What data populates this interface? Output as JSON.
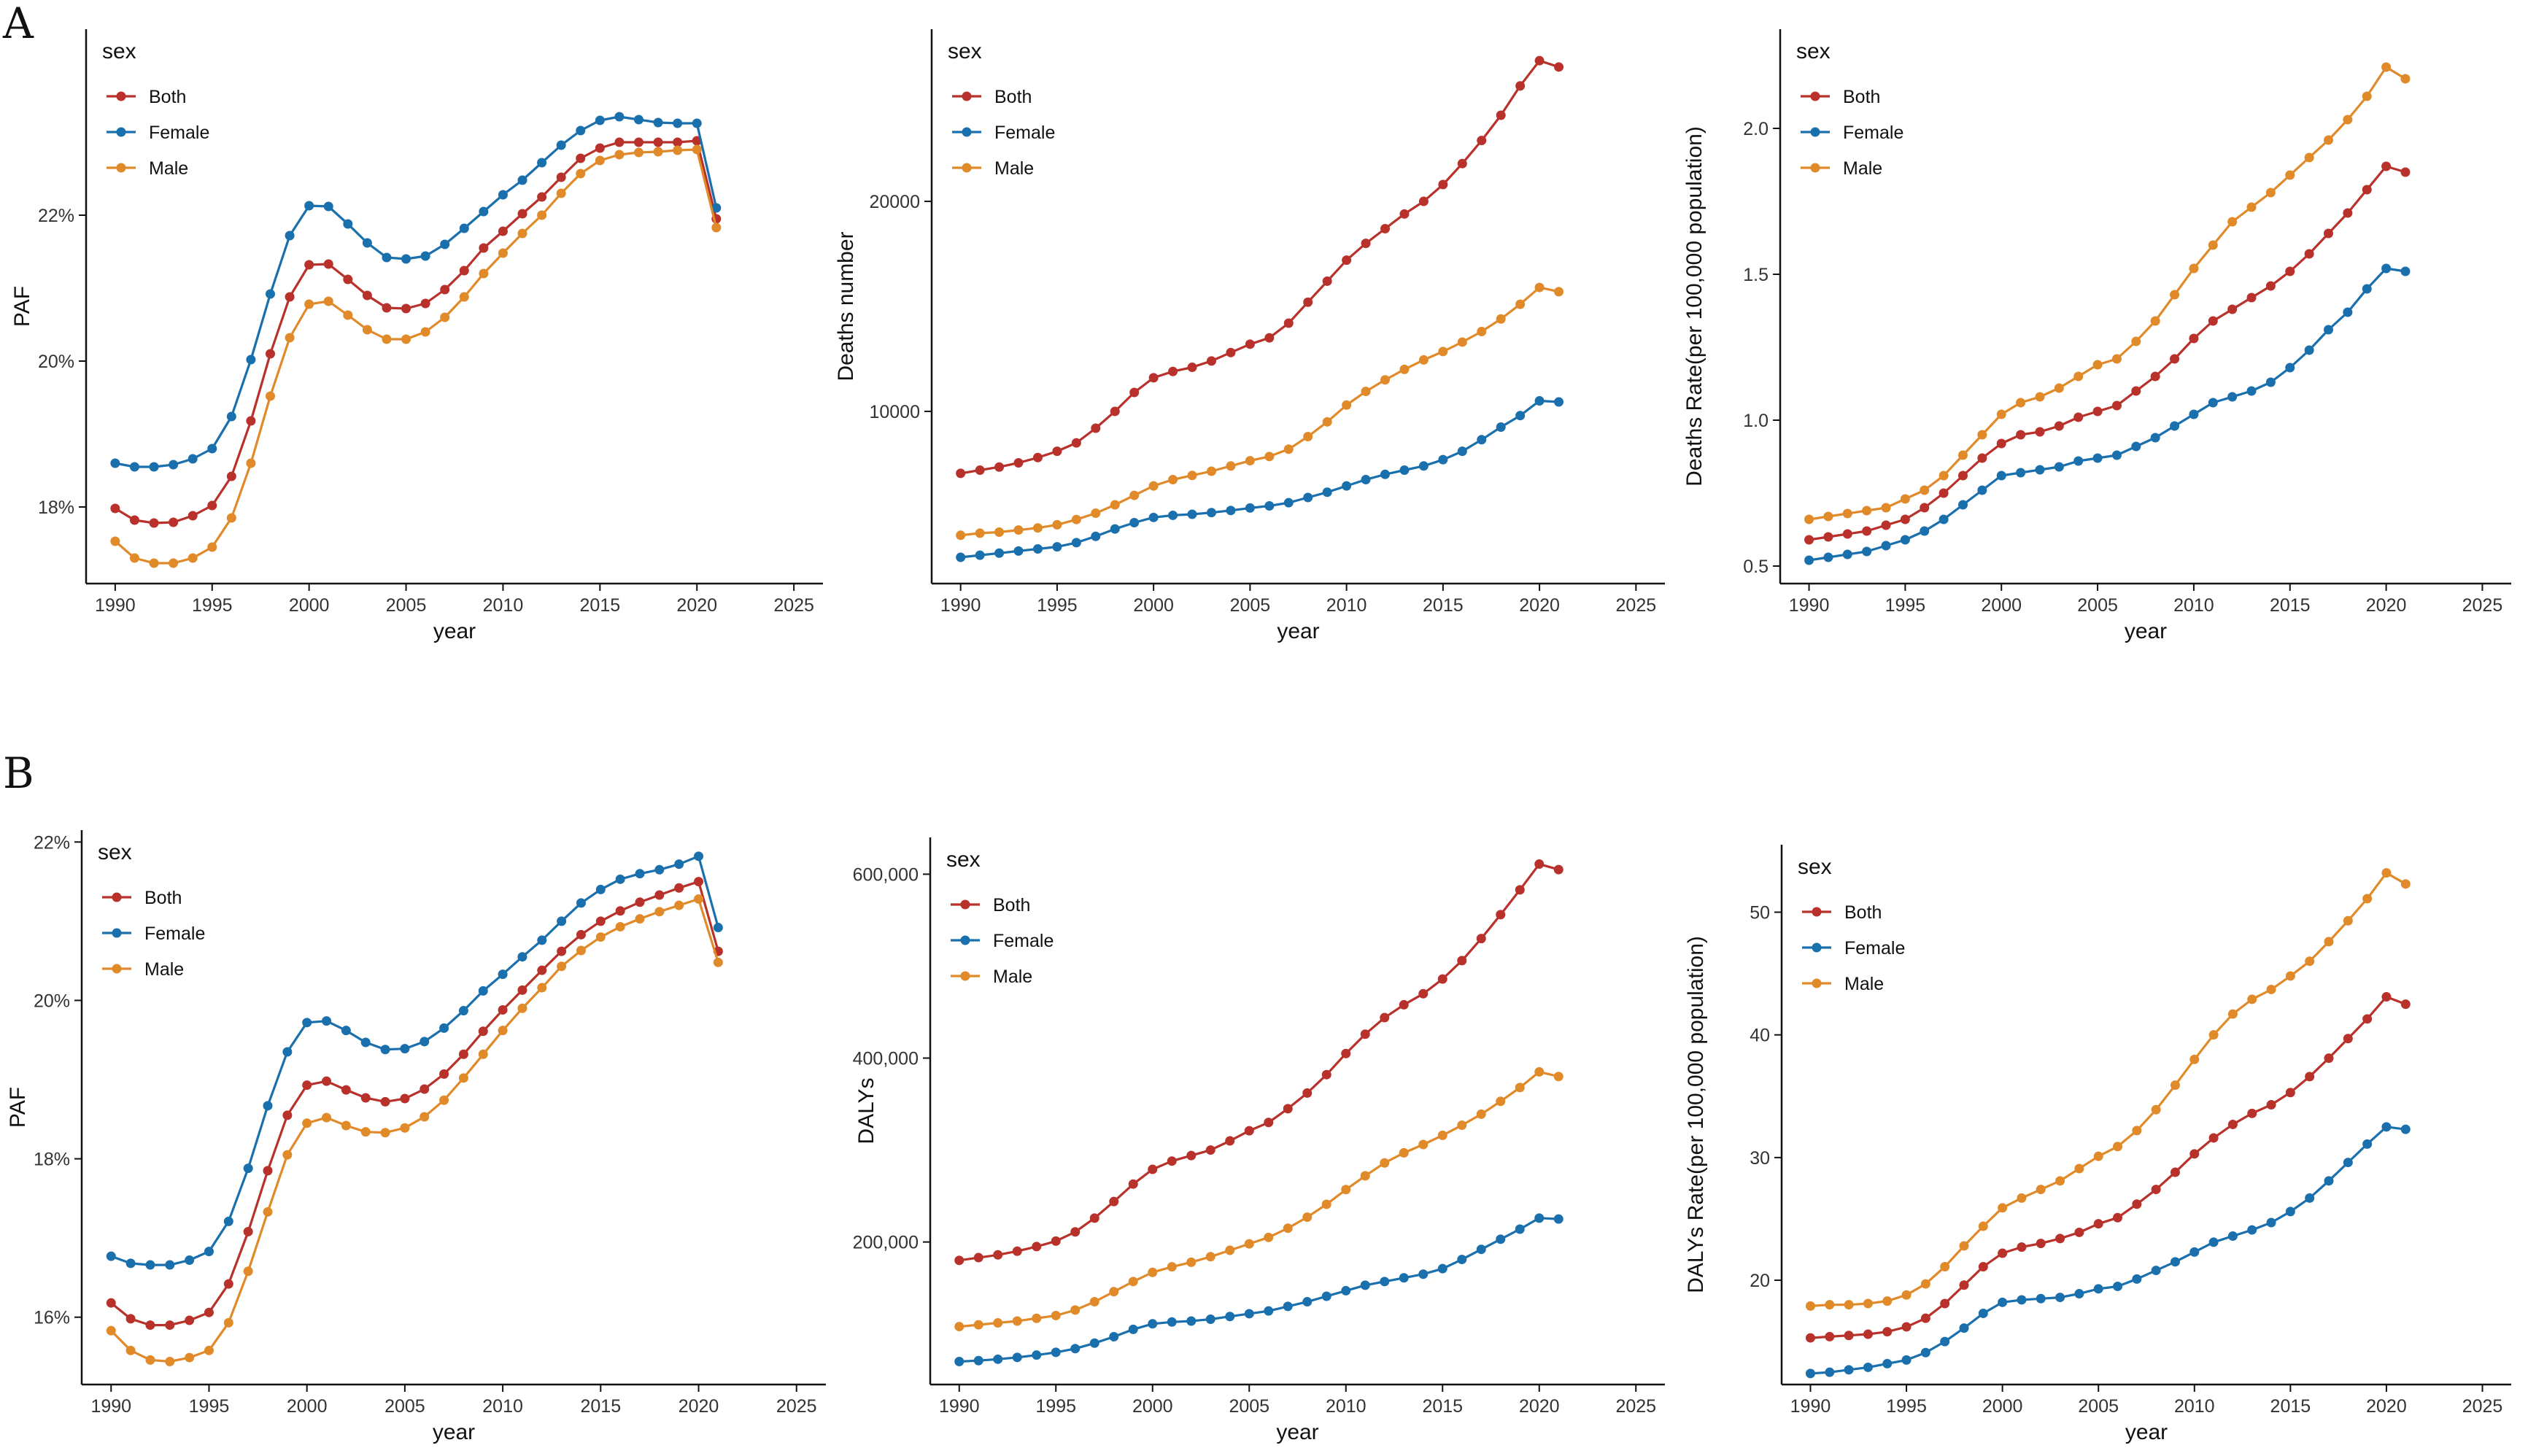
{
  "panel_labels": [
    "A",
    "B"
  ],
  "colors": {
    "Both": "#b8312a",
    "Female": "#1a6fad",
    "Male": "#e08a2a"
  },
  "chart_data": [
    {
      "type": "line",
      "panel": "A",
      "title": "",
      "xlabel": "year",
      "ylabel": "PAF",
      "xlim": [
        1988.5,
        2026.5
      ],
      "ylim": [
        16.95,
        24.55
      ],
      "xticks": [
        1990,
        1995,
        2000,
        2005,
        2010,
        2015,
        2020,
        2025
      ],
      "xtick_labels": [
        "1990",
        "1995",
        "2000",
        "2005",
        "2010",
        "2015",
        "2020",
        "2025"
      ],
      "yticks": [
        18,
        20,
        22
      ],
      "ytick_labels": [
        "18%",
        "20%",
        "22%"
      ],
      "legend_title": "sex",
      "x": [
        1990,
        1991,
        1992,
        1993,
        1994,
        1995,
        1996,
        1997,
        1998,
        1999,
        2000,
        2001,
        2002,
        2003,
        2004,
        2005,
        2006,
        2007,
        2008,
        2009,
        2010,
        2011,
        2012,
        2013,
        2014,
        2015,
        2016,
        2017,
        2018,
        2019,
        2020,
        2021
      ],
      "series": [
        {
          "name": "Both",
          "values": [
            17.98,
            17.82,
            17.78,
            17.79,
            17.88,
            18.02,
            18.42,
            19.18,
            20.1,
            20.88,
            21.32,
            21.33,
            21.12,
            20.9,
            20.73,
            20.72,
            20.79,
            20.98,
            21.24,
            21.55,
            21.78,
            22.02,
            22.25,
            22.52,
            22.78,
            22.92,
            23.0,
            23.0,
            23.0,
            23.0,
            23.02,
            21.95
          ]
        },
        {
          "name": "Female",
          "values": [
            18.6,
            18.55,
            18.55,
            18.58,
            18.66,
            18.8,
            19.24,
            20.02,
            20.92,
            21.72,
            22.13,
            22.12,
            21.88,
            21.62,
            21.42,
            21.4,
            21.44,
            21.6,
            21.82,
            22.05,
            22.28,
            22.48,
            22.72,
            22.96,
            23.16,
            23.3,
            23.35,
            23.31,
            23.27,
            23.26,
            23.26,
            22.1
          ]
        },
        {
          "name": "Male",
          "values": [
            17.53,
            17.3,
            17.23,
            17.23,
            17.3,
            17.45,
            17.85,
            18.6,
            19.52,
            20.32,
            20.78,
            20.82,
            20.63,
            20.43,
            20.3,
            20.3,
            20.4,
            20.6,
            20.88,
            21.2,
            21.48,
            21.75,
            22.0,
            22.3,
            22.57,
            22.75,
            22.83,
            22.86,
            22.87,
            22.89,
            22.9,
            21.83
          ]
        }
      ]
    },
    {
      "type": "line",
      "panel": "A",
      "title": "",
      "xlabel": "year",
      "ylabel": "Deaths number",
      "xlim": [
        1988.5,
        2026.5
      ],
      "ylim": [
        1800,
        28200
      ],
      "xticks": [
        1990,
        1995,
        2000,
        2005,
        2010,
        2015,
        2020,
        2025
      ],
      "xtick_labels": [
        "1990",
        "1995",
        "2000",
        "2005",
        "2010",
        "2015",
        "2020",
        "2025"
      ],
      "yticks": [
        10000,
        20000
      ],
      "ytick_labels": [
        "10000",
        "20000"
      ],
      "legend_title": "sex",
      "x": [
        1990,
        1991,
        1992,
        1993,
        1994,
        1995,
        1996,
        1997,
        1998,
        1999,
        2000,
        2001,
        2002,
        2003,
        2004,
        2005,
        2006,
        2007,
        2008,
        2009,
        2010,
        2011,
        2012,
        2013,
        2014,
        2015,
        2016,
        2017,
        2018,
        2019,
        2020,
        2021
      ],
      "series": [
        {
          "name": "Both",
          "values": [
            7050,
            7200,
            7350,
            7550,
            7800,
            8100,
            8500,
            9200,
            10000,
            10900,
            11600,
            11900,
            12100,
            12400,
            12800,
            13200,
            13500,
            14200,
            15200,
            16200,
            17200,
            18000,
            18700,
            19400,
            20000,
            20800,
            21800,
            22900,
            24100,
            25500,
            26700,
            26400
          ]
        },
        {
          "name": "Female",
          "values": [
            3050,
            3150,
            3250,
            3350,
            3450,
            3550,
            3750,
            4050,
            4400,
            4700,
            4950,
            5050,
            5100,
            5180,
            5280,
            5400,
            5500,
            5650,
            5900,
            6150,
            6450,
            6750,
            7000,
            7200,
            7400,
            7700,
            8100,
            8650,
            9250,
            9800,
            10500,
            10450
          ]
        },
        {
          "name": "Male",
          "values": [
            4100,
            4200,
            4250,
            4350,
            4450,
            4600,
            4850,
            5150,
            5550,
            6000,
            6450,
            6750,
            6950,
            7150,
            7400,
            7650,
            7850,
            8200,
            8800,
            9500,
            10300,
            10950,
            11500,
            12000,
            12450,
            12850,
            13300,
            13800,
            14400,
            15100,
            15900,
            15700
          ]
        }
      ]
    },
    {
      "type": "line",
      "panel": "A",
      "title": "",
      "xlabel": "year",
      "ylabel": "Deaths Rate(per 100,000 population)",
      "xlim": [
        1988.5,
        2026.5
      ],
      "ylim": [
        0.44,
        2.34
      ],
      "xticks": [
        1990,
        1995,
        2000,
        2005,
        2010,
        2015,
        2020,
        2025
      ],
      "xtick_labels": [
        "1990",
        "1995",
        "2000",
        "2005",
        "2010",
        "2015",
        "2020",
        "2025"
      ],
      "yticks": [
        0.5,
        1.0,
        1.5,
        2.0
      ],
      "ytick_labels": [
        "0.5",
        "1.0",
        "1.5",
        "2.0"
      ],
      "legend_title": "sex",
      "x": [
        1990,
        1991,
        1992,
        1993,
        1994,
        1995,
        1996,
        1997,
        1998,
        1999,
        2000,
        2001,
        2002,
        2003,
        2004,
        2005,
        2006,
        2007,
        2008,
        2009,
        2010,
        2011,
        2012,
        2013,
        2014,
        2015,
        2016,
        2017,
        2018,
        2019,
        2020,
        2021
      ],
      "series": [
        {
          "name": "Both",
          "values": [
            0.59,
            0.6,
            0.61,
            0.62,
            0.64,
            0.66,
            0.7,
            0.75,
            0.81,
            0.87,
            0.92,
            0.95,
            0.96,
            0.98,
            1.01,
            1.03,
            1.05,
            1.1,
            1.15,
            1.21,
            1.28,
            1.34,
            1.38,
            1.42,
            1.46,
            1.51,
            1.57,
            1.64,
            1.71,
            1.79,
            1.87,
            1.85
          ]
        },
        {
          "name": "Female",
          "values": [
            0.52,
            0.53,
            0.54,
            0.55,
            0.57,
            0.59,
            0.62,
            0.66,
            0.71,
            0.76,
            0.81,
            0.82,
            0.83,
            0.84,
            0.86,
            0.87,
            0.88,
            0.91,
            0.94,
            0.98,
            1.02,
            1.06,
            1.08,
            1.1,
            1.13,
            1.18,
            1.24,
            1.31,
            1.37,
            1.45,
            1.52,
            1.51
          ]
        },
        {
          "name": "Male",
          "values": [
            0.66,
            0.67,
            0.68,
            0.69,
            0.7,
            0.73,
            0.76,
            0.81,
            0.88,
            0.95,
            1.02,
            1.06,
            1.08,
            1.11,
            1.15,
            1.19,
            1.21,
            1.27,
            1.34,
            1.43,
            1.52,
            1.6,
            1.68,
            1.73,
            1.78,
            1.84,
            1.9,
            1.96,
            2.03,
            2.11,
            2.21,
            2.17
          ]
        }
      ]
    },
    {
      "type": "line",
      "panel": "B",
      "title": "",
      "xlabel": "year",
      "ylabel": "PAF",
      "xlim": [
        1988.5,
        2026.5
      ],
      "ylim": [
        15.15,
        22.15
      ],
      "xticks": [
        1990,
        1995,
        2000,
        2005,
        2010,
        2015,
        2020,
        2025
      ],
      "xtick_labels": [
        "1990",
        "1995",
        "2000",
        "2005",
        "2010",
        "2015",
        "2020",
        "2025"
      ],
      "yticks": [
        16,
        18,
        20,
        22
      ],
      "ytick_labels": [
        "16%",
        "18%",
        "20%",
        "22%"
      ],
      "legend_title": "sex",
      "x": [
        1990,
        1991,
        1992,
        1993,
        1994,
        1995,
        1996,
        1997,
        1998,
        1999,
        2000,
        2001,
        2002,
        2003,
        2004,
        2005,
        2006,
        2007,
        2008,
        2009,
        2010,
        2011,
        2012,
        2013,
        2014,
        2015,
        2016,
        2017,
        2018,
        2019,
        2020,
        2021
      ],
      "series": [
        {
          "name": "Both",
          "values": [
            16.18,
            15.98,
            15.9,
            15.9,
            15.96,
            16.06,
            16.42,
            17.08,
            17.85,
            18.55,
            18.93,
            18.98,
            18.87,
            18.77,
            18.72,
            18.76,
            18.88,
            19.07,
            19.32,
            19.61,
            19.88,
            20.13,
            20.38,
            20.62,
            20.83,
            21.0,
            21.13,
            21.24,
            21.33,
            21.42,
            21.5,
            20.62
          ]
        },
        {
          "name": "Female",
          "values": [
            16.77,
            16.68,
            16.66,
            16.66,
            16.72,
            16.83,
            17.21,
            17.88,
            18.67,
            19.35,
            19.72,
            19.74,
            19.62,
            19.47,
            19.38,
            19.39,
            19.48,
            19.65,
            19.87,
            20.12,
            20.33,
            20.55,
            20.76,
            21.0,
            21.23,
            21.4,
            21.53,
            21.6,
            21.65,
            21.72,
            21.82,
            20.92
          ]
        },
        {
          "name": "Male",
          "values": [
            15.83,
            15.58,
            15.46,
            15.44,
            15.49,
            15.58,
            15.93,
            16.58,
            17.33,
            18.05,
            18.45,
            18.52,
            18.42,
            18.34,
            18.33,
            18.39,
            18.53,
            18.74,
            19.02,
            19.32,
            19.62,
            19.9,
            20.16,
            20.43,
            20.63,
            20.8,
            20.93,
            21.03,
            21.12,
            21.2,
            21.28,
            20.48
          ]
        }
      ]
    },
    {
      "type": "line",
      "panel": "B",
      "title": "",
      "xlabel": "year",
      "ylabel": "DALYs",
      "xlim": [
        1988.5,
        2026.5
      ],
      "ylim": [
        45000,
        640000
      ],
      "xticks": [
        1990,
        1995,
        2000,
        2005,
        2010,
        2015,
        2020,
        2025
      ],
      "xtick_labels": [
        "1990",
        "1995",
        "2000",
        "2005",
        "2010",
        "2015",
        "2020",
        "2025"
      ],
      "yticks": [
        200000,
        400000,
        600000
      ],
      "ytick_labels": [
        "200,000",
        "400,000",
        "600,000"
      ],
      "legend_title": "sex",
      "x": [
        1990,
        1991,
        1992,
        1993,
        1994,
        1995,
        1996,
        1997,
        1998,
        1999,
        2000,
        2001,
        2002,
        2003,
        2004,
        2005,
        2006,
        2007,
        2008,
        2009,
        2010,
        2011,
        2012,
        2013,
        2014,
        2015,
        2016,
        2017,
        2018,
        2019,
        2020,
        2021
      ],
      "series": [
        {
          "name": "Both",
          "values": [
            180000,
            183000,
            186000,
            190000,
            195000,
            201000,
            211000,
            226000,
            244000,
            263000,
            279000,
            288000,
            294000,
            300000,
            310000,
            321000,
            330000,
            345000,
            362000,
            382000,
            405000,
            426000,
            444000,
            458000,
            470000,
            486000,
            506000,
            530000,
            556000,
            583000,
            611000,
            605000
          ]
        },
        {
          "name": "Female",
          "values": [
            70000,
            71000,
            72500,
            74500,
            77000,
            80000,
            84000,
            90000,
            97000,
            105000,
            111000,
            113000,
            114000,
            116000,
            119000,
            122000,
            125000,
            130000,
            135000,
            141000,
            147000,
            153000,
            157000,
            161000,
            165000,
            171000,
            181000,
            192000,
            203000,
            214000,
            226000,
            225000
          ]
        },
        {
          "name": "Male",
          "values": [
            108000,
            110000,
            112000,
            114000,
            117000,
            120000,
            126000,
            135000,
            146000,
            157000,
            167000,
            173000,
            178000,
            184000,
            191000,
            198000,
            205000,
            215000,
            227000,
            241000,
            257000,
            272000,
            286000,
            297000,
            306000,
            316000,
            327000,
            339000,
            353000,
            368000,
            385000,
            380000
          ]
        }
      ]
    },
    {
      "type": "line",
      "panel": "B",
      "title": "",
      "xlabel": "year",
      "ylabel": "DALYs Rate(per 100,000 population)",
      "xlim": [
        1988.5,
        2026.5
      ],
      "ylim": [
        11.5,
        55.5
      ],
      "xticks": [
        1990,
        1995,
        2000,
        2005,
        2010,
        2015,
        2020,
        2025
      ],
      "xtick_labels": [
        "1990",
        "1995",
        "2000",
        "2005",
        "2010",
        "2015",
        "2020",
        "2025"
      ],
      "yticks": [
        20,
        30,
        40,
        50
      ],
      "ytick_labels": [
        "20",
        "30",
        "40",
        "50"
      ],
      "legend_title": "sex",
      "x": [
        1990,
        1991,
        1992,
        1993,
        1994,
        1995,
        1996,
        1997,
        1998,
        1999,
        2000,
        2001,
        2002,
        2003,
        2004,
        2005,
        2006,
        2007,
        2008,
        2009,
        2010,
        2011,
        2012,
        2013,
        2014,
        2015,
        2016,
        2017,
        2018,
        2019,
        2020,
        2021
      ],
      "series": [
        {
          "name": "Both",
          "values": [
            15.3,
            15.4,
            15.5,
            15.6,
            15.8,
            16.2,
            16.9,
            18.1,
            19.6,
            21.1,
            22.2,
            22.7,
            23.0,
            23.4,
            23.9,
            24.6,
            25.1,
            26.2,
            27.4,
            28.8,
            30.3,
            31.6,
            32.7,
            33.6,
            34.3,
            35.3,
            36.6,
            38.1,
            39.7,
            41.3,
            43.1,
            42.5
          ]
        },
        {
          "name": "Female",
          "values": [
            12.4,
            12.5,
            12.7,
            12.9,
            13.2,
            13.5,
            14.1,
            15.0,
            16.1,
            17.3,
            18.2,
            18.4,
            18.5,
            18.6,
            18.9,
            19.3,
            19.5,
            20.1,
            20.8,
            21.5,
            22.3,
            23.1,
            23.6,
            24.1,
            24.7,
            25.6,
            26.7,
            28.1,
            29.6,
            31.1,
            32.5,
            32.3
          ]
        },
        {
          "name": "Male",
          "values": [
            17.9,
            18.0,
            18.0,
            18.1,
            18.3,
            18.8,
            19.7,
            21.1,
            22.8,
            24.4,
            25.9,
            26.7,
            27.4,
            28.1,
            29.1,
            30.1,
            30.9,
            32.2,
            33.9,
            35.9,
            38.0,
            40.0,
            41.7,
            42.9,
            43.7,
            44.8,
            46.0,
            47.6,
            49.3,
            51.1,
            53.2,
            52.3
          ]
        }
      ]
    }
  ]
}
